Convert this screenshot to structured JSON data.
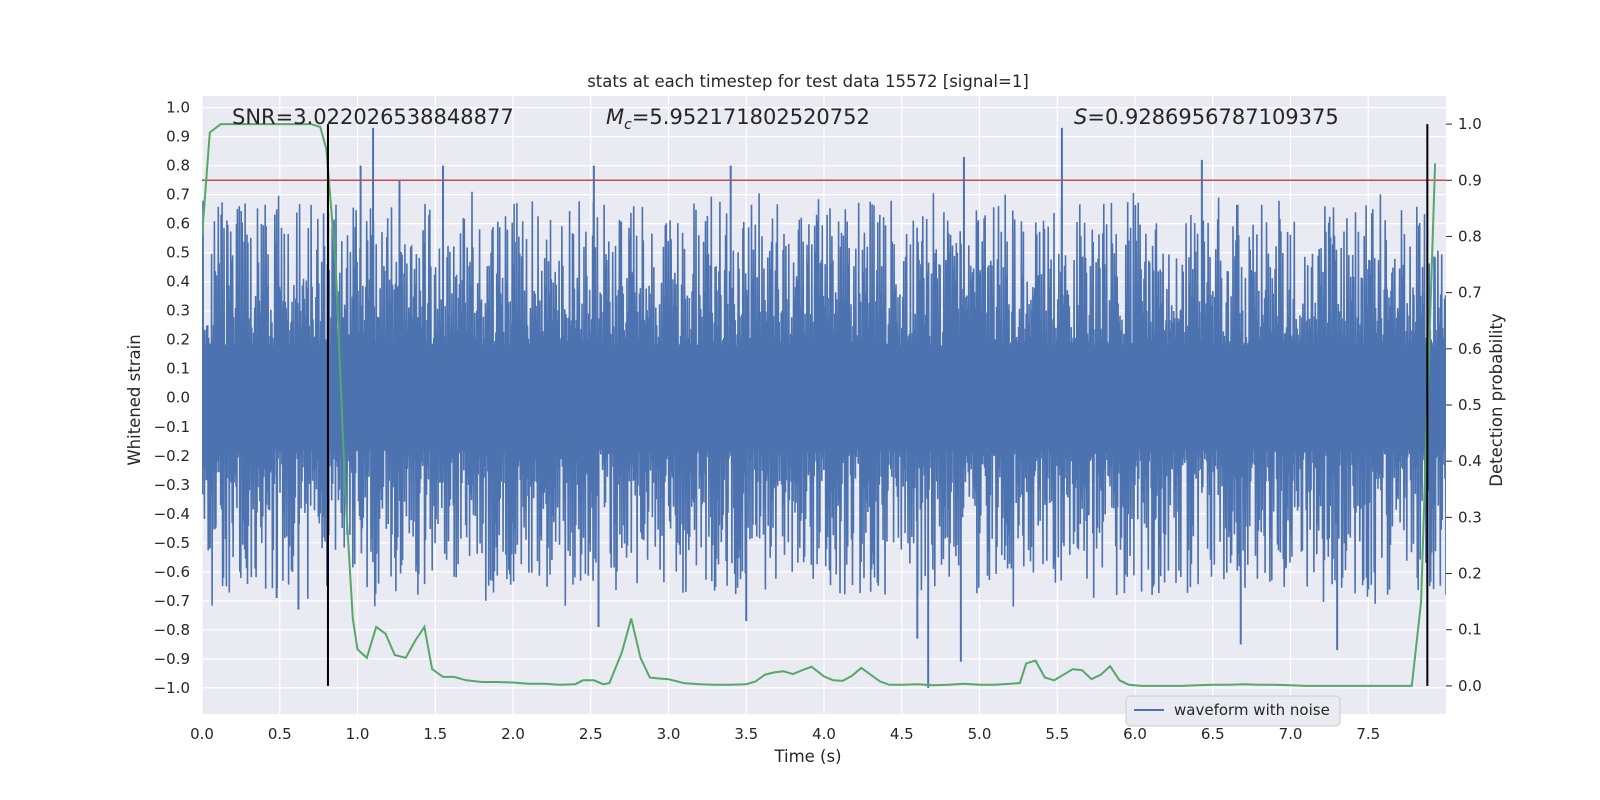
{
  "chart_data": {
    "type": "line",
    "title": "stats at each timestep for test data 15572 [signal=1]",
    "xlabel": "Time (s)",
    "ylabel": "Whitened strain",
    "y2label": "Detection probability",
    "xlim": [
      0.0,
      8.0
    ],
    "ylim": [
      -1.09,
      1.04
    ],
    "y2lim": [
      -0.05,
      1.05
    ],
    "x_ticks": [
      "0.0",
      "0.5",
      "1.0",
      "1.5",
      "2.0",
      "2.5",
      "3.0",
      "3.5",
      "4.0",
      "4.5",
      "5.0",
      "5.5",
      "6.0",
      "6.5",
      "7.0",
      "7.5"
    ],
    "x_tick_values": [
      0.0,
      0.5,
      1.0,
      1.5,
      2.0,
      2.5,
      3.0,
      3.5,
      4.0,
      4.5,
      5.0,
      5.5,
      6.0,
      6.5,
      7.0,
      7.5
    ],
    "y_ticks": [
      "1.0",
      "0.9",
      "0.8",
      "0.7",
      "0.6",
      "0.5",
      "0.4",
      "0.3",
      "0.2",
      "0.1",
      "0.0",
      "−0.1",
      "−0.2",
      "−0.3",
      "−0.4",
      "−0.5",
      "−0.6",
      "−0.7",
      "−0.8",
      "−0.9",
      "−1.0"
    ],
    "y_tick_values": [
      1.0,
      0.9,
      0.8,
      0.7,
      0.6,
      0.5,
      0.4,
      0.3,
      0.2,
      0.1,
      0.0,
      -0.1,
      -0.2,
      -0.3,
      -0.4,
      -0.5,
      -0.6,
      -0.7,
      -0.8,
      -0.9,
      -1.0
    ],
    "y2_ticks": [
      "1.0",
      "0.9",
      "0.8",
      "0.7",
      "0.6",
      "0.5",
      "0.4",
      "0.3",
      "0.2",
      "0.1",
      "0.0"
    ],
    "y2_tick_values": [
      1.0,
      0.9,
      0.8,
      0.7,
      0.6,
      0.5,
      0.4,
      0.3,
      0.2,
      0.1,
      0.0
    ],
    "annotations": {
      "snr_text": "SNR=3.022026538848877",
      "mc_symbol": "M",
      "mc_sub": "c",
      "mc_value": "=5.952171802520752",
      "s_symbol": "S",
      "s_value": "=0.9286956787109375"
    },
    "threshold_y2": 0.9,
    "vertical_markers_x": [
      0.81,
      7.88
    ],
    "waveform": {
      "name": "waveform with noise",
      "x_range": [
        0.0,
        8.0
      ],
      "typical_positive_peak": 0.45,
      "typical_negative_peak": -0.45,
      "notable_peaks": [
        {
          "x": 1.1,
          "y": 0.93
        },
        {
          "x": 1.02,
          "y": 0.8
        },
        {
          "x": 1.27,
          "y": 0.75
        },
        {
          "x": 1.55,
          "y": 0.8
        },
        {
          "x": 2.52,
          "y": 0.8
        },
        {
          "x": 3.4,
          "y": 0.8
        },
        {
          "x": 4.9,
          "y": 0.83
        },
        {
          "x": 5.53,
          "y": 0.93
        },
        {
          "x": 6.43,
          "y": 0.82
        },
        {
          "x": 0.48,
          "y": -0.69
        },
        {
          "x": 0.62,
          "y": -0.73
        },
        {
          "x": 2.55,
          "y": -0.79
        },
        {
          "x": 3.5,
          "y": -0.77
        },
        {
          "x": 4.6,
          "y": -0.83
        },
        {
          "x": 4.67,
          "y": -1.0
        },
        {
          "x": 4.88,
          "y": -0.91
        },
        {
          "x": 6.68,
          "y": -0.85
        },
        {
          "x": 7.3,
          "y": -0.87
        }
      ]
    },
    "probability_series": {
      "name": "Detection probability",
      "x": [
        0.0,
        0.05,
        0.12,
        0.2,
        0.3,
        0.4,
        0.5,
        0.6,
        0.7,
        0.76,
        0.8,
        0.86,
        0.92,
        0.97,
        1.0,
        1.06,
        1.12,
        1.18,
        1.24,
        1.31,
        1.37,
        1.43,
        1.48,
        1.55,
        1.62,
        1.7,
        1.8,
        1.9,
        2.0,
        2.1,
        2.2,
        2.3,
        2.4,
        2.45,
        2.52,
        2.58,
        2.62,
        2.7,
        2.76,
        2.82,
        2.88,
        2.95,
        3.0,
        3.1,
        3.2,
        3.3,
        3.4,
        3.5,
        3.56,
        3.62,
        3.68,
        3.74,
        3.8,
        3.86,
        3.92,
        4.0,
        4.06,
        4.12,
        4.18,
        4.24,
        4.3,
        4.36,
        4.42,
        4.5,
        4.6,
        4.7,
        4.8,
        4.9,
        5.0,
        5.1,
        5.2,
        5.26,
        5.3,
        5.36,
        5.42,
        5.48,
        5.54,
        5.6,
        5.66,
        5.72,
        5.78,
        5.84,
        5.9,
        5.96,
        6.04,
        6.1,
        6.2,
        6.3,
        6.4,
        6.5,
        6.6,
        6.7,
        6.8,
        6.9,
        7.0,
        7.1,
        7.2,
        7.3,
        7.4,
        7.5,
        7.6,
        7.7,
        7.78,
        7.84,
        7.88,
        7.93
      ],
      "y": [
        0.8,
        0.985,
        1.0,
        1.0,
        1.0,
        1.0,
        1.0,
        1.0,
        1.0,
        0.995,
        0.955,
        0.75,
        0.35,
        0.12,
        0.065,
        0.05,
        0.105,
        0.093,
        0.055,
        0.05,
        0.08,
        0.105,
        0.03,
        0.016,
        0.016,
        0.01,
        0.007,
        0.007,
        0.006,
        0.004,
        0.004,
        0.002,
        0.003,
        0.01,
        0.01,
        0.003,
        0.005,
        0.06,
        0.12,
        0.05,
        0.015,
        0.013,
        0.012,
        0.005,
        0.003,
        0.002,
        0.002,
        0.003,
        0.008,
        0.02,
        0.024,
        0.026,
        0.021,
        0.028,
        0.034,
        0.017,
        0.01,
        0.009,
        0.018,
        0.032,
        0.02,
        0.008,
        0.002,
        0.002,
        0.003,
        0.001,
        0.002,
        0.004,
        0.002,
        0.002,
        0.004,
        0.005,
        0.04,
        0.045,
        0.015,
        0.01,
        0.02,
        0.03,
        0.028,
        0.012,
        0.02,
        0.035,
        0.01,
        0.002,
        0.0,
        0.0,
        0.0,
        0.0,
        0.001,
        0.002,
        0.002,
        0.003,
        0.002,
        0.002,
        0.001,
        0.0,
        0.0,
        0.0,
        0.0,
        0.0,
        0.0,
        0.0,
        0.0,
        0.15,
        0.5,
        0.93
      ]
    },
    "legend": [
      {
        "label": "waveform with noise",
        "color": "#4c72b0"
      }
    ],
    "legend_position": "lower-right",
    "grid": true,
    "colors": {
      "waveform": "#4c72b0",
      "probability": "#55a868",
      "threshold": "#c44e52",
      "markers": "#000000",
      "plot_bg": "#eaeaf2",
      "grid": "#ffffff"
    }
  }
}
